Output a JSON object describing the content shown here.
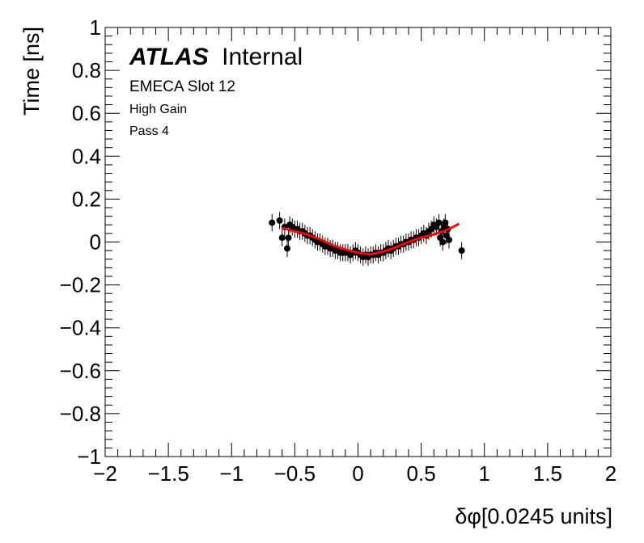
{
  "chart_data": {
    "type": "scatter",
    "xlabel": "δφ[0.0245 units]",
    "ylabel": "Time [ns]",
    "xlim": [
      -2,
      2
    ],
    "ylim": [
      -1,
      1
    ],
    "x_ticks": [
      -2,
      -1.5,
      -1,
      -0.5,
      0,
      0.5,
      1,
      1.5,
      2
    ],
    "x_tick_labels": [
      "−2",
      "−1.5",
      "−1",
      "−0.5",
      "0",
      "0.5",
      "1",
      "1.5",
      "2"
    ],
    "y_ticks": [
      -1,
      -0.8,
      -0.6,
      -0.4,
      -0.2,
      0,
      0.2,
      0.4,
      0.6,
      0.8,
      1
    ],
    "y_tick_labels": [
      "−1",
      "−0.8",
      "−0.6",
      "−0.4",
      "−0.2",
      "0",
      "0.2",
      "0.4",
      "0.6",
      "0.8",
      "1"
    ],
    "grid": false,
    "annotations": {
      "experiment": "ATLAS",
      "status": "Internal",
      "line1": "EMECA Slot 12",
      "line2": "High Gain",
      "line3": "Pass 4"
    },
    "series": [
      {
        "kind": "points",
        "color": "#000000",
        "points": [
          {
            "x": -0.68,
            "y": 0.09,
            "err": 0.04
          },
          {
            "x": -0.62,
            "y": 0.1,
            "err": 0.04
          },
          {
            "x": -0.6,
            "y": 0.02,
            "err": 0.04
          },
          {
            "x": -0.58,
            "y": 0.07,
            "err": 0.04
          },
          {
            "x": -0.56,
            "y": -0.03,
            "err": 0.04
          },
          {
            "x": -0.55,
            "y": 0.02,
            "err": 0.04
          },
          {
            "x": -0.54,
            "y": 0.08,
            "err": 0.04
          },
          {
            "x": -0.52,
            "y": 0.07,
            "err": 0.04
          },
          {
            "x": -0.5,
            "y": 0.06,
            "err": 0.04
          },
          {
            "x": -0.48,
            "y": 0.06,
            "err": 0.04
          },
          {
            "x": -0.46,
            "y": 0.05,
            "err": 0.04
          },
          {
            "x": -0.44,
            "y": 0.05,
            "err": 0.04
          },
          {
            "x": -0.42,
            "y": 0.04,
            "err": 0.04
          },
          {
            "x": -0.4,
            "y": 0.03,
            "err": 0.04
          },
          {
            "x": -0.38,
            "y": 0.03,
            "err": 0.04
          },
          {
            "x": -0.36,
            "y": 0.02,
            "err": 0.04
          },
          {
            "x": -0.34,
            "y": 0.01,
            "err": 0.04
          },
          {
            "x": -0.32,
            "y": 0.0,
            "err": 0.04
          },
          {
            "x": -0.3,
            "y": 0.0,
            "err": 0.04
          },
          {
            "x": -0.28,
            "y": -0.01,
            "err": 0.04
          },
          {
            "x": -0.26,
            "y": -0.02,
            "err": 0.04
          },
          {
            "x": -0.24,
            "y": -0.02,
            "err": 0.04
          },
          {
            "x": -0.22,
            "y": -0.03,
            "err": 0.04
          },
          {
            "x": -0.2,
            "y": -0.03,
            "err": 0.04
          },
          {
            "x": -0.18,
            "y": -0.04,
            "err": 0.04
          },
          {
            "x": -0.16,
            "y": -0.04,
            "err": 0.04
          },
          {
            "x": -0.14,
            "y": -0.05,
            "err": 0.04
          },
          {
            "x": -0.12,
            "y": -0.05,
            "err": 0.04
          },
          {
            "x": -0.1,
            "y": -0.05,
            "err": 0.04
          },
          {
            "x": -0.08,
            "y": -0.05,
            "err": 0.04
          },
          {
            "x": -0.06,
            "y": -0.06,
            "err": 0.04
          },
          {
            "x": -0.04,
            "y": -0.05,
            "err": 0.04
          },
          {
            "x": -0.02,
            "y": -0.04,
            "err": 0.04
          },
          {
            "x": 0.0,
            "y": -0.05,
            "err": 0.04
          },
          {
            "x": 0.02,
            "y": -0.06,
            "err": 0.04
          },
          {
            "x": 0.04,
            "y": -0.07,
            "err": 0.04
          },
          {
            "x": 0.06,
            "y": -0.06,
            "err": 0.04
          },
          {
            "x": 0.08,
            "y": -0.07,
            "err": 0.04
          },
          {
            "x": 0.1,
            "y": -0.06,
            "err": 0.04
          },
          {
            "x": 0.12,
            "y": -0.06,
            "err": 0.04
          },
          {
            "x": 0.14,
            "y": -0.05,
            "err": 0.04
          },
          {
            "x": 0.16,
            "y": -0.06,
            "err": 0.04
          },
          {
            "x": 0.18,
            "y": -0.05,
            "err": 0.04
          },
          {
            "x": 0.2,
            "y": -0.05,
            "err": 0.04
          },
          {
            "x": 0.22,
            "y": -0.04,
            "err": 0.04
          },
          {
            "x": 0.24,
            "y": -0.03,
            "err": 0.04
          },
          {
            "x": 0.26,
            "y": -0.04,
            "err": 0.04
          },
          {
            "x": 0.28,
            "y": -0.03,
            "err": 0.04
          },
          {
            "x": 0.3,
            "y": -0.02,
            "err": 0.04
          },
          {
            "x": 0.32,
            "y": -0.02,
            "err": 0.04
          },
          {
            "x": 0.34,
            "y": -0.01,
            "err": 0.04
          },
          {
            "x": 0.36,
            "y": -0.01,
            "err": 0.04
          },
          {
            "x": 0.38,
            "y": 0.0,
            "err": 0.04
          },
          {
            "x": 0.4,
            "y": 0.0,
            "err": 0.04
          },
          {
            "x": 0.42,
            "y": 0.01,
            "err": 0.04
          },
          {
            "x": 0.44,
            "y": 0.01,
            "err": 0.04
          },
          {
            "x": 0.46,
            "y": 0.02,
            "err": 0.04
          },
          {
            "x": 0.48,
            "y": 0.02,
            "err": 0.04
          },
          {
            "x": 0.5,
            "y": 0.03,
            "err": 0.04
          },
          {
            "x": 0.52,
            "y": 0.04,
            "err": 0.04
          },
          {
            "x": 0.54,
            "y": 0.03,
            "err": 0.04
          },
          {
            "x": 0.56,
            "y": 0.05,
            "err": 0.04
          },
          {
            "x": 0.58,
            "y": 0.06,
            "err": 0.04
          },
          {
            "x": 0.6,
            "y": 0.08,
            "err": 0.04
          },
          {
            "x": 0.62,
            "y": 0.07,
            "err": 0.04
          },
          {
            "x": 0.64,
            "y": 0.09,
            "err": 0.04
          },
          {
            "x": 0.65,
            "y": 0.02,
            "err": 0.04
          },
          {
            "x": 0.66,
            "y": 0.05,
            "err": 0.04
          },
          {
            "x": 0.67,
            "y": 0.0,
            "err": 0.04
          },
          {
            "x": 0.68,
            "y": 0.07,
            "err": 0.04
          },
          {
            "x": 0.69,
            "y": 0.09,
            "err": 0.04
          },
          {
            "x": 0.7,
            "y": 0.03,
            "err": 0.04
          },
          {
            "x": 0.71,
            "y": 0.06,
            "err": 0.04
          },
          {
            "x": 0.72,
            "y": 0.01,
            "err": 0.04
          },
          {
            "x": 0.82,
            "y": -0.04,
            "err": 0.04
          }
        ]
      },
      {
        "kind": "line",
        "color": "#ff0000",
        "x": [
          -0.6,
          -0.5,
          -0.4,
          -0.3,
          -0.2,
          -0.1,
          0.0,
          0.1,
          0.2,
          0.3,
          0.4,
          0.5,
          0.6,
          0.7,
          0.8
        ],
        "y": [
          0.065,
          0.05,
          0.035,
          0.012,
          -0.015,
          -0.035,
          -0.05,
          -0.058,
          -0.045,
          -0.025,
          0.0,
          0.02,
          0.035,
          0.055,
          0.085
        ]
      }
    ]
  }
}
